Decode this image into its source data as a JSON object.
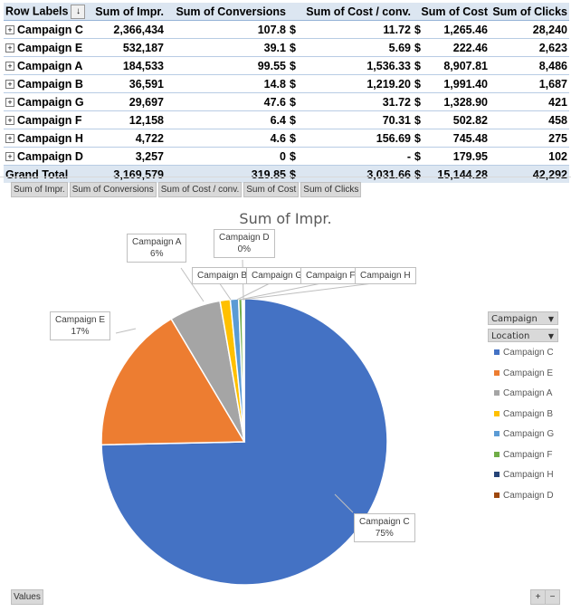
{
  "pivot": {
    "headers": [
      "Row Labels",
      "Sum of Impr.",
      "Sum of Conversions",
      "Sum of Cost / conv.",
      "Sum of Cost",
      "Sum of Clicks"
    ],
    "rows": [
      [
        "Campaign C",
        "2,366,434",
        "107.8",
        "11.72",
        "1,265.46",
        "28,240"
      ],
      [
        "Campaign E",
        "532,187",
        "39.1",
        "5.69",
        "222.46",
        "2,623"
      ],
      [
        "Campaign A",
        "184,533",
        "99.55",
        "1,536.33",
        "8,907.81",
        "8,486"
      ],
      [
        "Campaign B",
        "36,591",
        "14.8",
        "1,219.20",
        "1,991.40",
        "1,687"
      ],
      [
        "Campaign G",
        "29,697",
        "47.6",
        "31.72",
        "1,328.90",
        "421"
      ],
      [
        "Campaign F",
        "12,158",
        "6.4",
        "70.31",
        "502.82",
        "458"
      ],
      [
        "Campaign H",
        "4,722",
        "4.6",
        "156.69",
        "745.48",
        "275"
      ],
      [
        "Campaign D",
        "3,257",
        "0",
        "-",
        "179.95",
        "102"
      ]
    ],
    "total": [
      "Grand Total",
      "3,169,579",
      "319.85",
      "3,031.66",
      "15,144.28",
      "42,292"
    ],
    "currency": "$"
  },
  "field_buttons": [
    "Sum of Impr.",
    "Sum of Conversions",
    "Sum of Cost / conv.",
    "Sum of Cost",
    "Sum of Clicks"
  ],
  "legend_filters": [
    "Campaign",
    "Location"
  ],
  "values_button": "Values",
  "zoom_buttons": [
    "+",
    "−"
  ],
  "chart_data": {
    "type": "pie",
    "title": "Sum of Impr.",
    "categories": [
      "Campaign C",
      "Campaign E",
      "Campaign A",
      "Campaign B",
      "Campaign G",
      "Campaign F",
      "Campaign H",
      "Campaign D"
    ],
    "values": [
      2366434,
      532187,
      184533,
      36591,
      29697,
      12158,
      4722,
      3257
    ],
    "colors": [
      "#4472c4",
      "#ed7d31",
      "#a5a5a5",
      "#ffc000",
      "#5b9bd5",
      "#70ad47",
      "#264478",
      "#9e480e"
    ],
    "data_labels": {
      "Campaign C": "75%",
      "Campaign E": "17%",
      "Campaign A": "6%",
      "Campaign D": "0%"
    },
    "legend_position": "right"
  }
}
